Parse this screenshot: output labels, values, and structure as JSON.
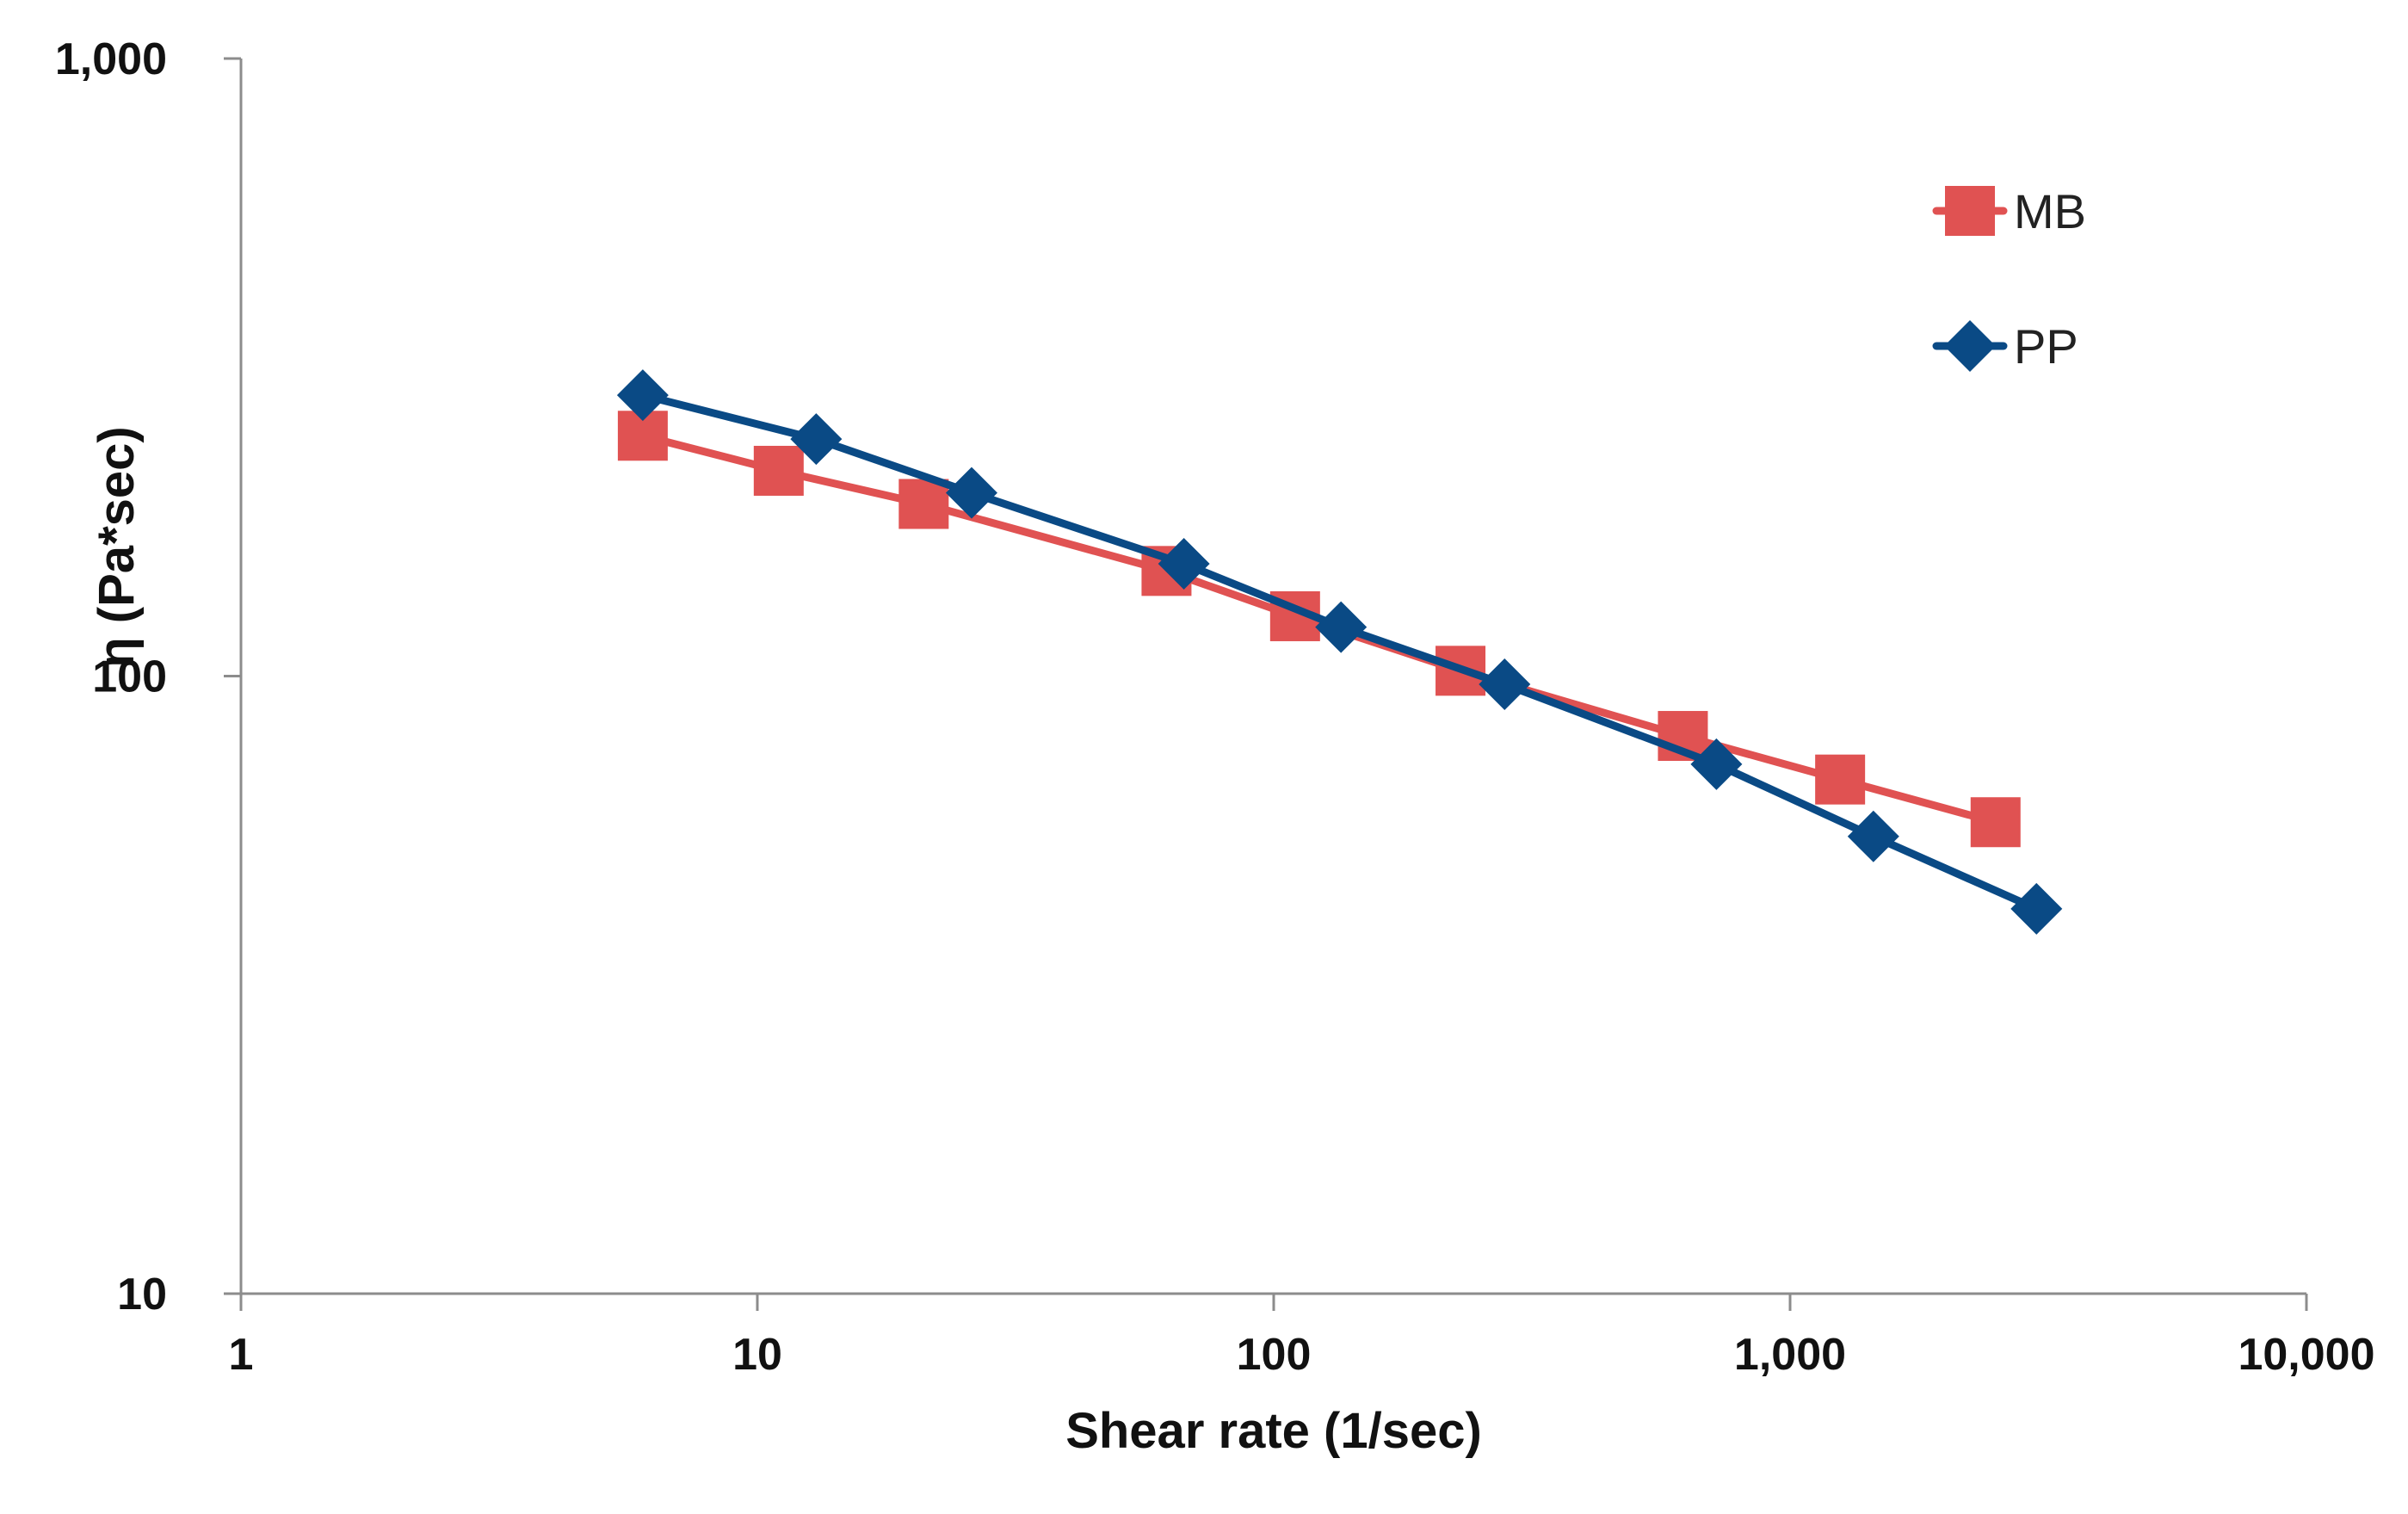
{
  "chart_data": {
    "type": "line",
    "title": "",
    "xlabel": "Shear rate (1/sec)",
    "ylabel": "η (Pa*sec)",
    "x_scale": "log",
    "y_scale": "log",
    "xlim": [
      1,
      10000
    ],
    "ylim": [
      10,
      1000
    ],
    "x_ticks": [
      1,
      10,
      100,
      1000,
      10000
    ],
    "x_tick_labels": [
      "1",
      "10",
      "100",
      "1,000",
      "10,000"
    ],
    "y_ticks": [
      10,
      100,
      1000
    ],
    "y_tick_labels": [
      "10",
      "100",
      "1,000"
    ],
    "grid": false,
    "legend_position": "top-right",
    "series": [
      {
        "name": "MB",
        "color": "#e05252",
        "marker": "square",
        "x": [
          6,
          11,
          21,
          62,
          110,
          230,
          620,
          1250,
          2500
        ],
        "y": [
          245,
          215,
          190,
          148,
          125,
          102,
          80,
          68,
          58
        ]
      },
      {
        "name": "PP",
        "color": "#0a4a85",
        "marker": "diamond",
        "x": [
          6,
          13,
          26,
          67,
          135,
          280,
          720,
          1450,
          3000
        ],
        "y": [
          285,
          242,
          198,
          152,
          120,
          97,
          72,
          55,
          42
        ]
      }
    ]
  }
}
